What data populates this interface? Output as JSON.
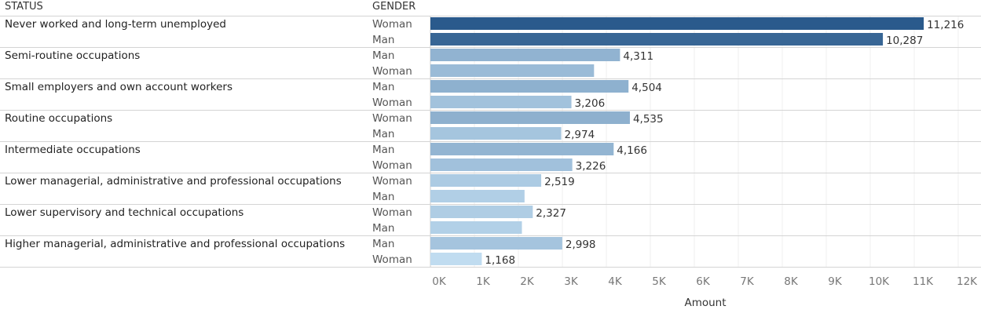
{
  "headers": {
    "status": "STATUS",
    "gender": "GENDER"
  },
  "chart_data": {
    "type": "bar",
    "orientation": "horizontal",
    "xlabel": "Amount",
    "xlim": [
      0,
      12500
    ],
    "xticks": [
      0,
      1000,
      2000,
      3000,
      4000,
      5000,
      6000,
      7000,
      8000,
      9000,
      10000,
      11000,
      12000
    ],
    "xtick_labels": [
      "0K",
      "1K",
      "2K",
      "3K",
      "4K",
      "5K",
      "6K",
      "7K",
      "8K",
      "9K",
      "10K",
      "11K",
      "12K"
    ],
    "grid": true,
    "groups": [
      {
        "status": "Never worked and long-term unemployed",
        "rows": [
          {
            "gender": "Woman",
            "value": 11216,
            "label": "11,216"
          },
          {
            "gender": "Man",
            "value": 10287,
            "label": "10,287"
          }
        ]
      },
      {
        "status": "Semi-routine occupations",
        "rows": [
          {
            "gender": "Man",
            "value": 4311,
            "label": "4,311"
          },
          {
            "gender": "Woman",
            "value": 3720,
            "label": ""
          }
        ]
      },
      {
        "status": "Small employers and own account workers",
        "rows": [
          {
            "gender": "Man",
            "value": 4504,
            "label": "4,504"
          },
          {
            "gender": "Woman",
            "value": 3206,
            "label": "3,206"
          }
        ]
      },
      {
        "status": "Routine occupations",
        "rows": [
          {
            "gender": "Woman",
            "value": 4535,
            "label": "4,535"
          },
          {
            "gender": "Man",
            "value": 2974,
            "label": "2,974"
          }
        ]
      },
      {
        "status": "Intermediate occupations",
        "rows": [
          {
            "gender": "Man",
            "value": 4166,
            "label": "4,166"
          },
          {
            "gender": "Woman",
            "value": 3226,
            "label": "3,226"
          }
        ]
      },
      {
        "status": "Lower managerial, administrative and professional occupations",
        "rows": [
          {
            "gender": "Woman",
            "value": 2519,
            "label": "2,519"
          },
          {
            "gender": "Man",
            "value": 2140,
            "label": ""
          }
        ]
      },
      {
        "status": "Lower supervisory and technical occupations",
        "rows": [
          {
            "gender": "Woman",
            "value": 2327,
            "label": "2,327"
          },
          {
            "gender": "Man",
            "value": 2080,
            "label": ""
          }
        ]
      },
      {
        "status": "Higher managerial, administrative and professional occupations",
        "rows": [
          {
            "gender": "Man",
            "value": 2998,
            "label": "2,998"
          },
          {
            "gender": "Woman",
            "value": 1168,
            "label": "1,168"
          }
        ]
      }
    ],
    "color_scale": {
      "min_value": 1168,
      "max_value": 11216,
      "light": "#c0dcf0",
      "dark": "#2a5a8c"
    }
  }
}
